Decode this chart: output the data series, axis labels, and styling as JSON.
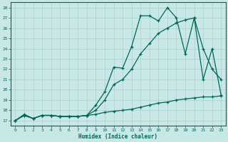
{
  "xlabel": "Humidex (Indice chaleur)",
  "background_color": "#c8e8e8",
  "grid_color": "#b0cccc",
  "line_color": "#006655",
  "xlim": [
    -0.5,
    23.5
  ],
  "ylim": [
    16.5,
    28.5
  ],
  "yticks": [
    17,
    18,
    19,
    20,
    21,
    22,
    23,
    24,
    25,
    26,
    27,
    28
  ],
  "xticks": [
    0,
    1,
    2,
    3,
    4,
    5,
    6,
    7,
    8,
    9,
    10,
    11,
    12,
    13,
    14,
    15,
    16,
    17,
    18,
    19,
    20,
    21,
    22,
    23
  ],
  "y_top": [
    17.0,
    17.5,
    17.2,
    17.5,
    17.5,
    17.4,
    17.4,
    17.4,
    17.5,
    18.5,
    19.8,
    22.2,
    22.1,
    24.2,
    27.2,
    27.2,
    26.7,
    28.0,
    27.0,
    23.5,
    27.0,
    21.0,
    24.0,
    19.5
  ],
  "y_mid": [
    17.0,
    17.6,
    17.2,
    17.5,
    17.5,
    17.4,
    17.4,
    17.4,
    17.5,
    18.0,
    19.0,
    20.5,
    21.0,
    22.0,
    23.5,
    24.5,
    25.5,
    26.0,
    26.5,
    26.8,
    27.0,
    24.0,
    22.0,
    21.0
  ],
  "y_bot": [
    17.0,
    17.5,
    17.2,
    17.5,
    17.5,
    17.4,
    17.4,
    17.4,
    17.5,
    17.6,
    17.8,
    17.9,
    18.0,
    18.1,
    18.3,
    18.5,
    18.7,
    18.8,
    19.0,
    19.1,
    19.2,
    19.3,
    19.3,
    19.4
  ]
}
